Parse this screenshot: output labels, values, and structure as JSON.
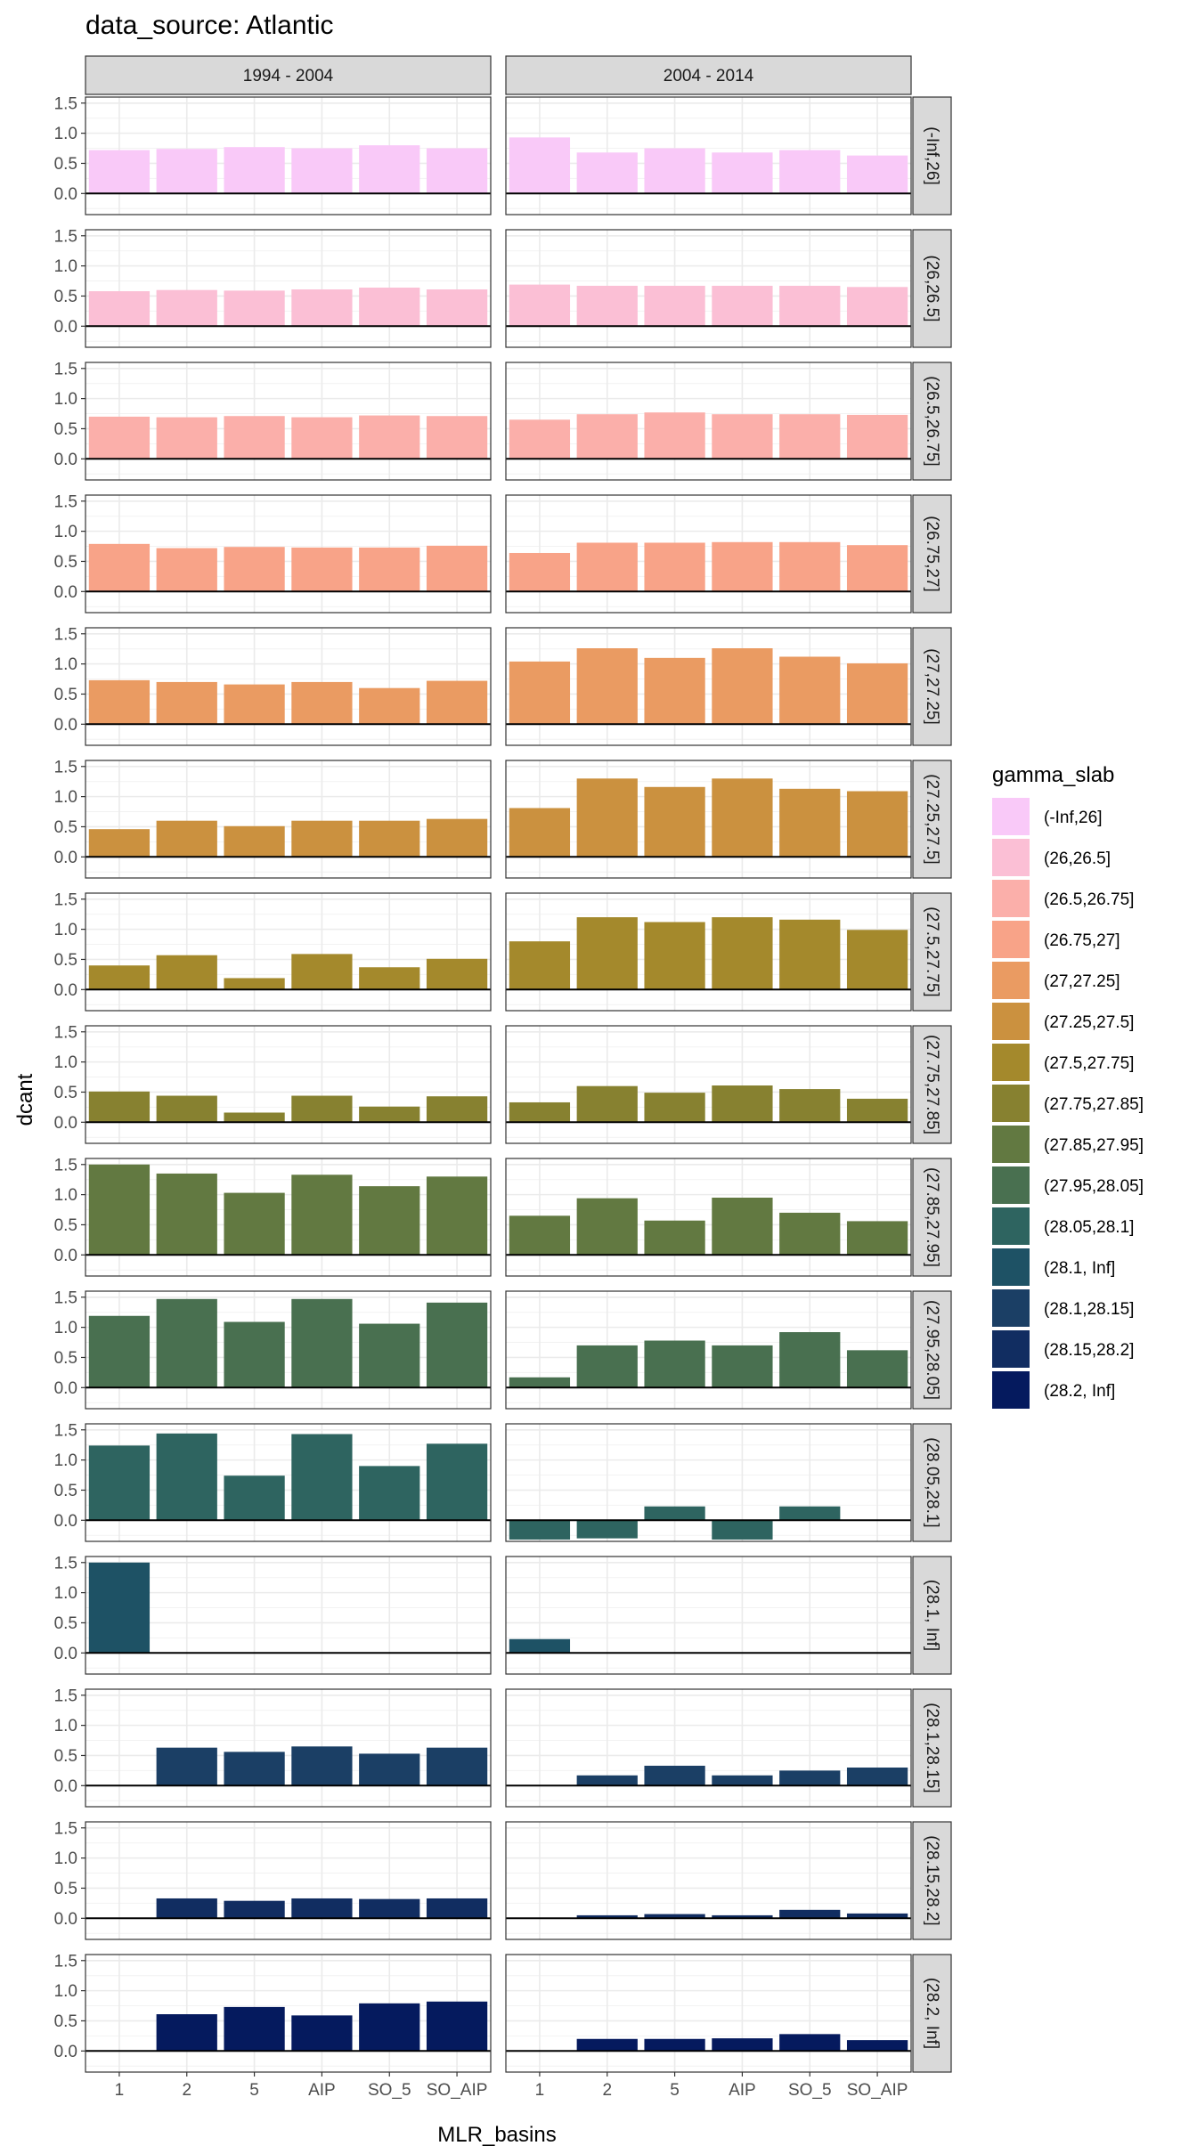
{
  "chart_data": {
    "type": "bar",
    "title": "data_source: Atlantic",
    "xlabel": "MLR_basins",
    "ylabel": "dcant",
    "categories": [
      "1",
      "2",
      "5",
      "AIP",
      "SO_5",
      "SO_AIP"
    ],
    "columns": [
      "1994 - 2004",
      "2004 - 2014"
    ],
    "ylim": [
      -0.35,
      1.6
    ],
    "yticks": [
      0.0,
      0.5,
      1.0,
      1.5
    ],
    "y_tick_labels": [
      "0.0",
      "0.5",
      "1.0",
      "1.5"
    ],
    "legend": {
      "title": "gamma_slab",
      "position": "right"
    },
    "grid": true,
    "rows": [
      {
        "label": "(-Inf,26]",
        "color": "#F9C9F8",
        "values": [
          [
            0.72,
            0.74,
            0.77,
            0.75,
            0.8,
            0.75
          ],
          [
            0.93,
            0.68,
            0.75,
            0.68,
            0.72,
            0.63
          ]
        ]
      },
      {
        "label": "(26,26.5]",
        "color": "#FBBFD5",
        "values": [
          [
            0.58,
            0.6,
            0.59,
            0.61,
            0.64,
            0.61
          ],
          [
            0.69,
            0.67,
            0.67,
            0.67,
            0.67,
            0.65
          ]
        ]
      },
      {
        "label": "(26.5,26.75]",
        "color": "#FBAFAA",
        "values": [
          [
            0.7,
            0.69,
            0.71,
            0.69,
            0.72,
            0.71
          ],
          [
            0.65,
            0.74,
            0.77,
            0.74,
            0.74,
            0.73
          ]
        ]
      },
      {
        "label": "(26.75,27]",
        "color": "#F8A388",
        "values": [
          [
            0.79,
            0.72,
            0.74,
            0.73,
            0.73,
            0.76
          ],
          [
            0.64,
            0.81,
            0.81,
            0.82,
            0.82,
            0.77
          ]
        ]
      },
      {
        "label": "(27,27.25]",
        "color": "#EA9B62",
        "values": [
          [
            0.73,
            0.7,
            0.66,
            0.7,
            0.6,
            0.72
          ],
          [
            1.04,
            1.26,
            1.1,
            1.26,
            1.12,
            1.01
          ]
        ]
      },
      {
        "label": "(27.25,27.5]",
        "color": "#CB913F",
        "values": [
          [
            0.46,
            0.6,
            0.51,
            0.6,
            0.6,
            0.63
          ],
          [
            0.81,
            1.3,
            1.16,
            1.3,
            1.13,
            1.09
          ]
        ]
      },
      {
        "label": "(27.5,27.75]",
        "color": "#A4892C",
        "values": [
          [
            0.4,
            0.57,
            0.19,
            0.59,
            0.37,
            0.51
          ],
          [
            0.8,
            1.2,
            1.12,
            1.2,
            1.16,
            0.99
          ]
        ]
      },
      {
        "label": "(27.75,27.85]",
        "color": "#878130",
        "values": [
          [
            0.51,
            0.44,
            0.16,
            0.44,
            0.26,
            0.43
          ],
          [
            0.33,
            0.6,
            0.49,
            0.61,
            0.55,
            0.39
          ]
        ]
      },
      {
        "label": "(27.85,27.95]",
        "color": "#627941",
        "values": [
          [
            1.5,
            1.35,
            1.03,
            1.33,
            1.14,
            1.3
          ],
          [
            0.65,
            0.94,
            0.57,
            0.95,
            0.7,
            0.56
          ]
        ]
      },
      {
        "label": "(27.95,28.05]",
        "color": "#497050",
        "values": [
          [
            1.19,
            1.47,
            1.09,
            1.47,
            1.06,
            1.41
          ],
          [
            0.17,
            0.7,
            0.78,
            0.7,
            0.92,
            0.62
          ]
        ]
      },
      {
        "label": "(28.05,28.1]",
        "color": "#2E6460",
        "values": [
          [
            1.24,
            1.44,
            0.74,
            1.43,
            0.9,
            1.27
          ],
          [
            -0.32,
            -0.3,
            0.23,
            -0.32,
            0.23,
            null
          ]
        ]
      },
      {
        "label": "(28.1, Inf]",
        "color": "#1E5265",
        "values": [
          [
            1.5,
            null,
            null,
            null,
            null,
            null
          ],
          [
            0.23,
            null,
            null,
            null,
            null,
            null
          ]
        ]
      },
      {
        "label": "(28.1,28.15]",
        "color": "#1B3F65",
        "values": [
          [
            null,
            0.63,
            0.56,
            0.65,
            0.53,
            0.63
          ],
          [
            null,
            0.17,
            0.33,
            0.17,
            0.25,
            0.3
          ]
        ]
      },
      {
        "label": "(28.15,28.2]",
        "color": "#112D61",
        "values": [
          [
            null,
            0.33,
            0.29,
            0.33,
            0.32,
            0.33
          ],
          [
            null,
            0.05,
            0.07,
            0.05,
            0.14,
            0.08
          ]
        ]
      },
      {
        "label": "(28.2, Inf]",
        "color": "#051A5E",
        "values": [
          [
            null,
            0.61,
            0.73,
            0.59,
            0.79,
            0.82
          ],
          [
            null,
            0.2,
            0.2,
            0.21,
            0.28,
            0.18
          ]
        ]
      }
    ]
  }
}
